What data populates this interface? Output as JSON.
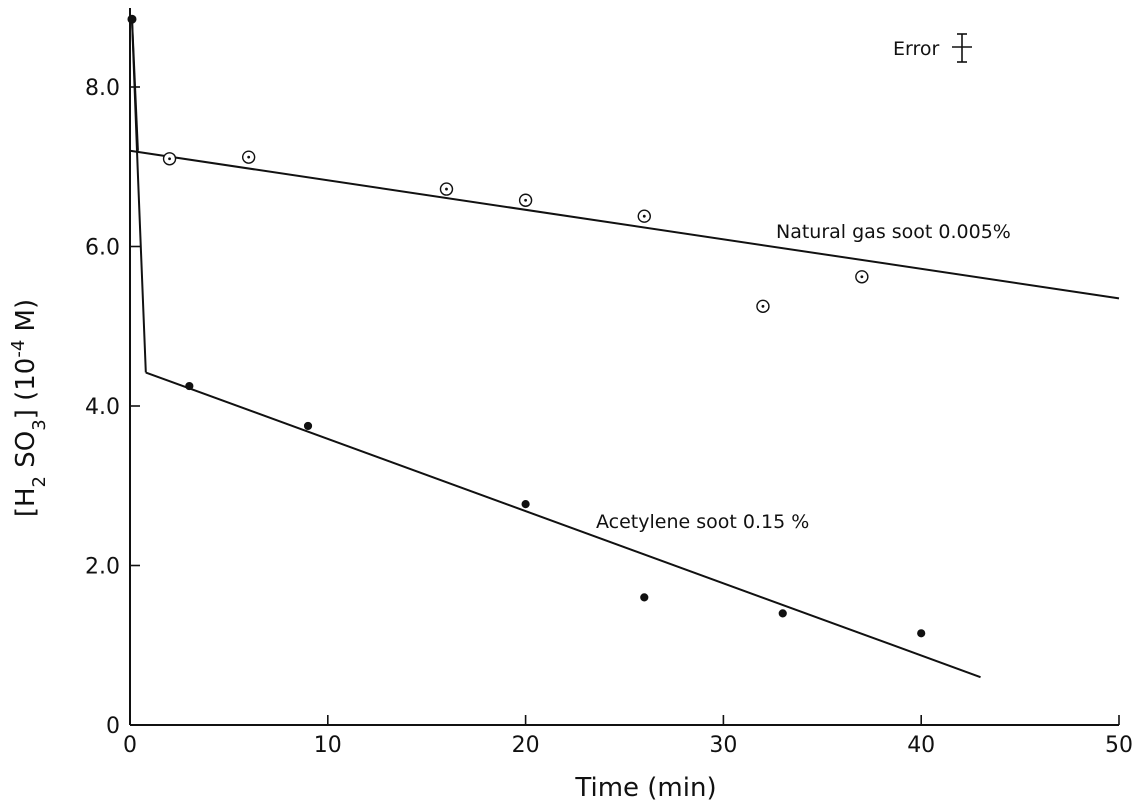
{
  "chart_data": {
    "type": "scatter",
    "xlabel": "Time (min)",
    "ylabel_parts": {
      "open_bracket": "[H",
      "sub1": "2",
      "mid": " SO",
      "sub2": "3",
      "close": "] (10",
      "sup": "-4",
      "unit": " M)"
    },
    "xlim": [
      0,
      50
    ],
    "ylim": [
      0,
      8.8
    ],
    "xticks": [
      0,
      10,
      20,
      30,
      40,
      50
    ],
    "yticks": [
      0,
      2.0,
      4.0,
      6.0,
      8.0
    ],
    "xtick_labels": [
      "0",
      "10",
      "20",
      "30",
      "40",
      "50"
    ],
    "ytick_labels": [
      "0",
      "2.0",
      "4.0",
      "6.0",
      "8.0"
    ],
    "grid": false,
    "initial_point": {
      "x": 0.1,
      "y": 8.85
    },
    "series": [
      {
        "name": "Natural gas soot 0.005%",
        "marker": "open-circle-dot",
        "x": [
          2,
          6,
          16,
          20,
          26,
          32,
          37
        ],
        "y": [
          7.1,
          7.12,
          6.72,
          6.58,
          6.38,
          5.25,
          5.62
        ],
        "fit": {
          "x": [
            0,
            50
          ],
          "y": [
            7.2,
            5.35
          ]
        },
        "initial_drop": {
          "x": [
            0.1,
            0.4
          ],
          "y": [
            8.85,
            7.2
          ]
        }
      },
      {
        "name": "Acetylene soot 0.15 %",
        "marker": "filled-circle",
        "x": [
          3,
          9,
          20,
          26,
          33,
          40
        ],
        "y": [
          4.25,
          3.75,
          2.77,
          1.6,
          1.4,
          1.15
        ],
        "fit": {
          "x": [
            0.8,
            43
          ],
          "y": [
            4.42,
            0.6
          ]
        },
        "initial_drop": {
          "x": [
            0.1,
            0.4,
            0.8
          ],
          "y": [
            8.85,
            6.9,
            4.42
          ]
        }
      }
    ],
    "annotation": {
      "text": "Error",
      "position": "top-right"
    }
  }
}
